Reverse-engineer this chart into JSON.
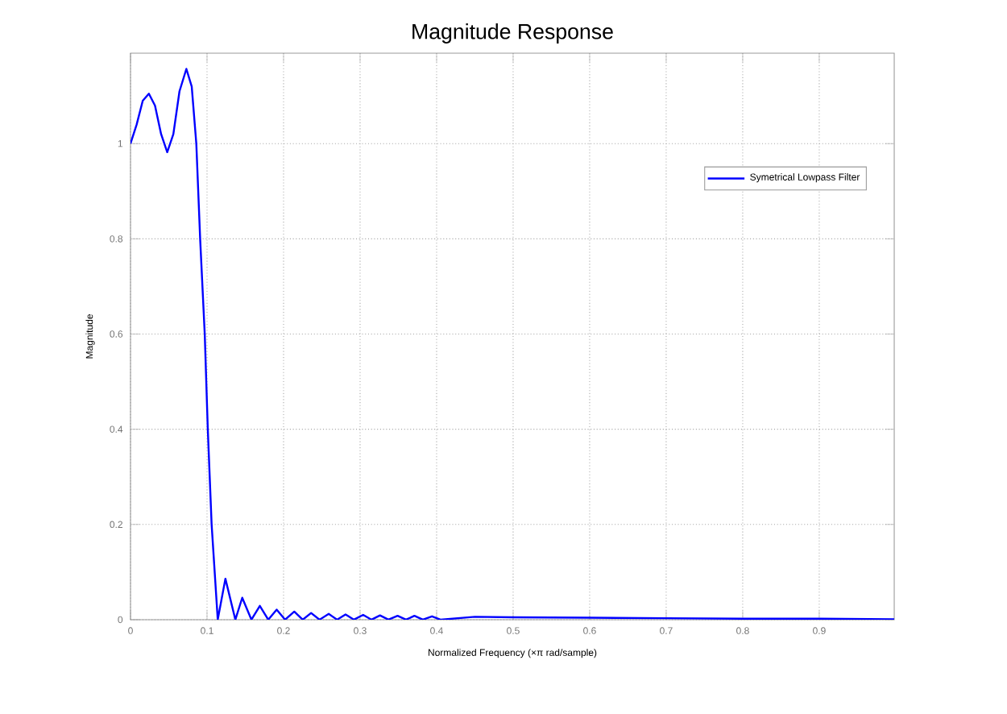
{
  "chart_data": {
    "type": "line",
    "title": "Magnitude Response",
    "xlabel": "Normalized Frequency (×π rad/sample)",
    "ylabel": "Magnitude",
    "x": [
      0,
      0.008,
      0.016,
      0.024,
      0.032,
      0.04,
      0.048,
      0.056,
      0.064,
      0.073,
      0.08,
      0.086,
      0.091,
      0.097,
      0.101,
      0.106,
      0.114,
      0.124,
      0.137,
      0.146,
      0.158,
      0.169,
      0.18,
      0.191,
      0.202,
      0.214,
      0.225,
      0.236,
      0.247,
      0.259,
      0.27,
      0.281,
      0.292,
      0.304,
      0.315,
      0.326,
      0.337,
      0.349,
      0.36,
      0.371,
      0.382,
      0.394,
      0.405,
      0.45,
      0.5,
      0.6,
      0.7,
      0.8,
      0.9,
      0.998
    ],
    "series": [
      {
        "name": "Symetrical Lowpass Filter",
        "color": "#0000ff",
        "values": [
          1.0,
          1.04,
          1.09,
          1.105,
          1.08,
          1.02,
          0.982,
          1.02,
          1.11,
          1.157,
          1.12,
          1.0,
          0.8,
          0.6,
          0.4,
          0.2,
          0,
          0.086,
          0,
          0.046,
          0,
          0.029,
          0,
          0.021,
          0,
          0.017,
          0,
          0.014,
          0,
          0.012,
          0,
          0.011,
          0,
          0.01,
          0,
          0.009,
          0,
          0.008,
          0,
          0.008,
          0,
          0.007,
          0,
          0.006,
          0.005,
          0.004,
          0.003,
          0.002,
          0.002,
          0.001
        ]
      }
    ],
    "xlim": [
      0,
      0.998
    ],
    "ylim": [
      0,
      1.19
    ],
    "xticks": [
      0,
      0.1,
      0.2,
      0.3,
      0.4,
      0.5,
      0.6,
      0.7,
      0.8,
      0.9
    ],
    "yticks": [
      0,
      0.2,
      0.4,
      0.6,
      0.8,
      1
    ],
    "grid": true,
    "legend": "top right",
    "line_style": "solid",
    "marker": "none"
  }
}
